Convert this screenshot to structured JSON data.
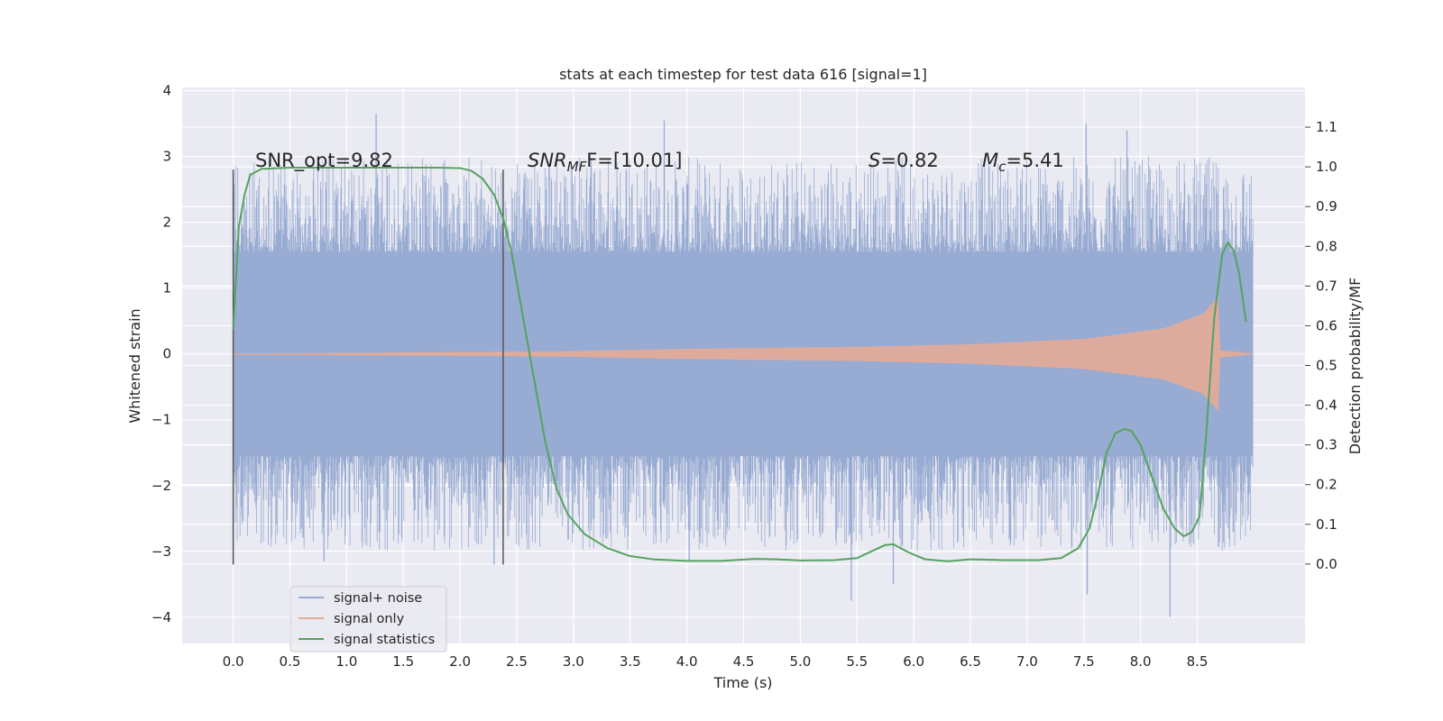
{
  "chart_data": {
    "type": "line",
    "title": "stats at each timestep for test data 616 [signal=1]",
    "xlabel": "Time (s)",
    "ylabel_left": "Whitened strain",
    "ylabel_right": "Detection probability/MF",
    "xlim": [
      -0.45,
      9.45
    ],
    "ylim_left": [
      -4.4,
      4.05
    ],
    "ylim_right": [
      -0.2,
      1.2
    ],
    "x_ticks": [
      0.0,
      0.5,
      1.0,
      1.5,
      2.0,
      2.5,
      3.0,
      3.5,
      4.0,
      4.5,
      5.0,
      5.5,
      6.0,
      6.5,
      7.0,
      7.5,
      8.0,
      8.5
    ],
    "x_tick_labels": [
      "0.0",
      "0.5",
      "1.0",
      "1.5",
      "2.0",
      "2.5",
      "3.0",
      "3.5",
      "4.0",
      "4.5",
      "5.0",
      "5.5",
      "6.0",
      "6.5",
      "7.0",
      "7.5",
      "8.0",
      "8.5"
    ],
    "left_ticks": [
      -4,
      -3,
      -2,
      -1,
      0,
      1,
      2,
      3,
      4
    ],
    "left_tick_labels": [
      "−4",
      "−3",
      "−2",
      "−1",
      "0",
      "1",
      "2",
      "3",
      "4"
    ],
    "right_ticks": [
      0.0,
      0.1,
      0.2,
      0.3,
      0.4,
      0.5,
      0.6,
      0.7,
      0.8,
      0.9,
      1.0,
      1.1
    ],
    "right_tick_labels": [
      "0.0",
      "0.1",
      "0.2",
      "0.3",
      "0.4",
      "0.5",
      "0.6",
      "0.7",
      "0.8",
      "0.9",
      "1.0",
      "1.1"
    ],
    "grid": true,
    "legend_position": "lower-left",
    "annotations": {
      "snr_opt": "SNR_opt=9.82",
      "snr_mf_main": "SNR",
      "snr_mf_sub": "MF",
      "snr_mf_rest": "F=[10.01]",
      "s_main": "S",
      "s_rest": "=0.82",
      "mc_main": "M",
      "mc_sub": "c",
      "mc_rest": "=5.41"
    },
    "window_markers_x": [
      0.0,
      2.38
    ],
    "window_markers_y": [
      -3.2,
      2.8
    ],
    "series": [
      {
        "name": "signal+ noise",
        "color": "#98abd2",
        "x_range": [
          0.0,
          8.99
        ],
        "envelope_core": 1.55,
        "spike_extremes": [
          3.65,
          -4.0
        ],
        "peaks": [
          [
            1.26,
            3.65
          ],
          [
            3.8,
            3.55
          ],
          [
            7.52,
            3.5
          ],
          [
            7.88,
            3.4
          ],
          [
            8.26,
            -4.0
          ],
          [
            5.45,
            -3.75
          ],
          [
            5.82,
            -3.5
          ],
          [
            7.53,
            -3.65
          ],
          [
            0.8,
            -3.15
          ],
          [
            2.3,
            -3.2
          ],
          [
            4.02,
            -3.15
          ]
        ]
      },
      {
        "name": "signal only",
        "color": "#e3ab98",
        "x_range": [
          0.0,
          8.99
        ],
        "amplitude_profile": [
          [
            0.0,
            0.0
          ],
          [
            2.8,
            0.03
          ],
          [
            4.0,
            0.07
          ],
          [
            5.5,
            0.1
          ],
          [
            6.5,
            0.14
          ],
          [
            7.5,
            0.22
          ],
          [
            8.2,
            0.38
          ],
          [
            8.55,
            0.6
          ],
          [
            8.68,
            0.85
          ],
          [
            8.7,
            0.05
          ],
          [
            8.99,
            0.0
          ]
        ]
      },
      {
        "name": "signal statistics",
        "color": "#54a35f",
        "x": [
          0.0,
          0.05,
          0.1,
          0.15,
          0.25,
          0.5,
          1.0,
          1.5,
          1.8,
          2.0,
          2.1,
          2.2,
          2.3,
          2.38,
          2.45,
          2.55,
          2.65,
          2.75,
          2.85,
          2.95,
          3.1,
          3.3,
          3.5,
          3.7,
          4.0,
          4.3,
          4.6,
          4.8,
          5.0,
          5.3,
          5.5,
          5.65,
          5.75,
          5.82,
          5.95,
          6.1,
          6.3,
          6.5,
          6.8,
          7.1,
          7.3,
          7.45,
          7.55,
          7.62,
          7.7,
          7.78,
          7.86,
          7.92,
          8.0,
          8.1,
          8.2,
          8.3,
          8.38,
          8.45,
          8.52,
          8.58,
          8.65,
          8.72,
          8.77,
          8.82,
          8.87,
          8.93
        ],
        "y": [
          0.59,
          0.85,
          0.93,
          0.98,
          0.995,
          0.998,
          0.998,
          0.998,
          0.998,
          0.997,
          0.99,
          0.97,
          0.93,
          0.87,
          0.79,
          0.63,
          0.47,
          0.31,
          0.19,
          0.125,
          0.075,
          0.04,
          0.02,
          0.012,
          0.008,
          0.008,
          0.013,
          0.012,
          0.009,
          0.01,
          0.015,
          0.035,
          0.048,
          0.05,
          0.03,
          0.012,
          0.007,
          0.012,
          0.01,
          0.01,
          0.015,
          0.04,
          0.09,
          0.17,
          0.28,
          0.33,
          0.34,
          0.335,
          0.3,
          0.22,
          0.14,
          0.09,
          0.07,
          0.08,
          0.12,
          0.33,
          0.62,
          0.78,
          0.81,
          0.79,
          0.73,
          0.61
        ]
      }
    ]
  }
}
